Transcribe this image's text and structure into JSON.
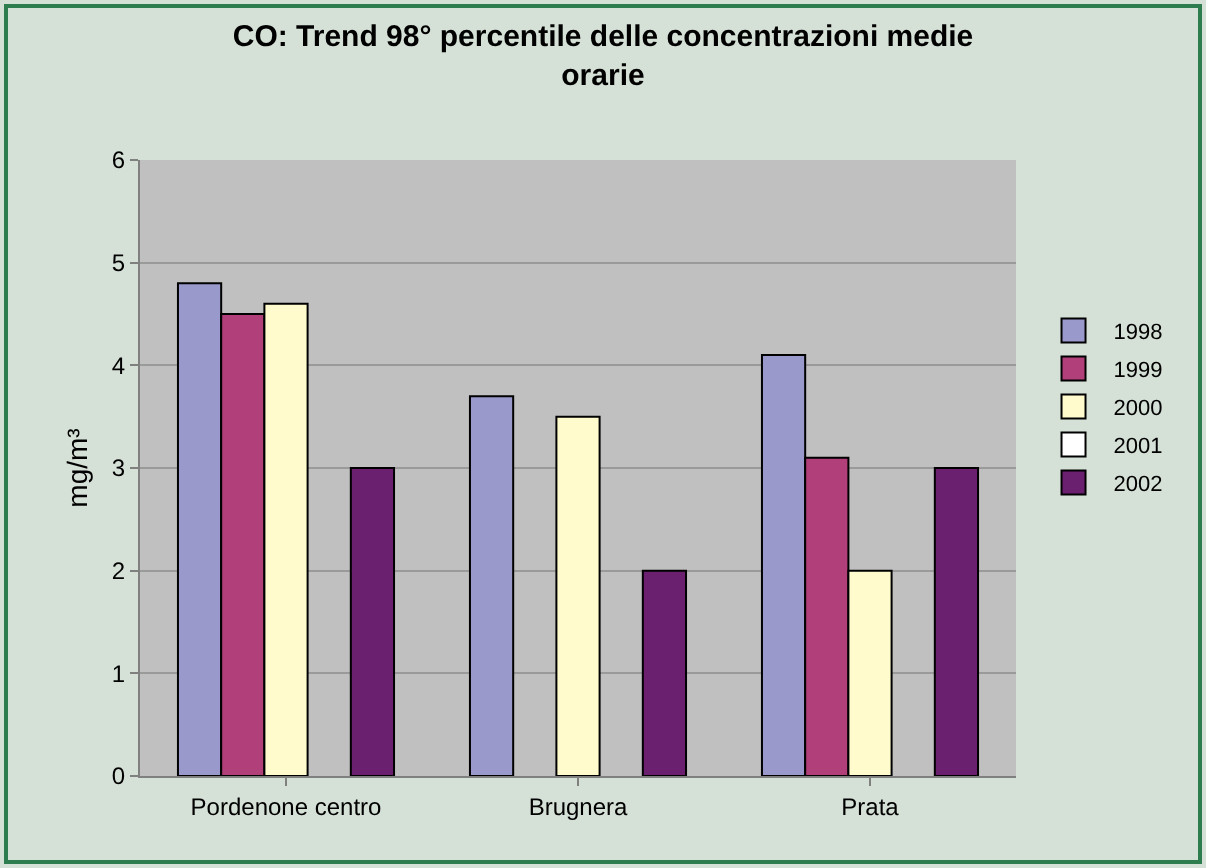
{
  "chart_data": {
    "type": "bar",
    "title": "CO: Trend 98° percentile delle concentrazioni medie orarie",
    "ylabel": "mg/m³",
    "categories": [
      "Pordenone centro",
      "Brugnera",
      "Prata"
    ],
    "series": [
      {
        "name": "1998",
        "color": "#9999cc",
        "values": [
          4.8,
          3.7,
          4.1
        ]
      },
      {
        "name": "1999",
        "color": "#b13f79",
        "values": [
          4.5,
          null,
          3.1
        ]
      },
      {
        "name": "2000",
        "color": "#fffbcc",
        "values": [
          4.6,
          3.5,
          2.0
        ]
      },
      {
        "name": "2001",
        "color": "#ffffff",
        "values": [
          null,
          null,
          null
        ]
      },
      {
        "name": "2002",
        "color": "#6b1f6f",
        "values": [
          3.0,
          2.0,
          3.0
        ]
      }
    ],
    "ylim": [
      0,
      6
    ],
    "yticks": [
      0,
      1,
      2,
      3,
      4,
      5,
      6
    ],
    "grid": "y",
    "legend": "right"
  }
}
